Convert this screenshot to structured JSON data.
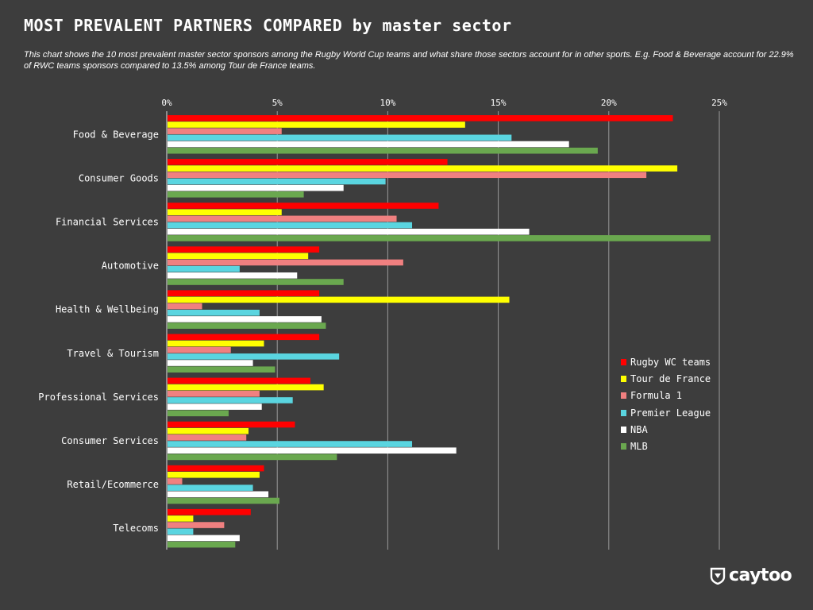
{
  "header": {
    "title": "MOST PREVALENT PARTNERS COMPARED by master sector",
    "subtitle": "This chart shows the 10 most prevalent master sector sponsors among the Rugby World Cup teams and what share those sectors account for in other sports. E.g. Food & Beverage account for 22.9% of RWC teams sponsors compared to 13.5% among Tour de France teams."
  },
  "logo": {
    "text": "caytoo",
    "icon": "caytoo-shield-icon"
  },
  "chart_data": {
    "type": "bar",
    "orientation": "horizontal",
    "categories": [
      "Food & Beverage",
      "Consumer Goods",
      "Financial Services",
      "Automotive",
      "Health & Wellbeing",
      "Travel & Tourism",
      "Professional Services",
      "Consumer Services",
      "Retail/Ecommerce",
      "Telecoms"
    ],
    "xlim": [
      0,
      25
    ],
    "ticks": [
      0,
      5,
      10,
      15,
      20,
      25
    ],
    "tick_labels": [
      "0%",
      "5%",
      "10%",
      "15%",
      "20%",
      "25%"
    ],
    "axis_position": "top",
    "grid": true,
    "legend_position": "right",
    "series": [
      {
        "name": "Rugby WC teams",
        "color": "#ff0000",
        "values": [
          22.9,
          12.7,
          12.3,
          6.9,
          6.9,
          6.9,
          6.5,
          5.8,
          4.4,
          3.8
        ]
      },
      {
        "name": "Tour de France",
        "color": "#ffff00",
        "values": [
          13.5,
          23.1,
          5.2,
          6.4,
          15.5,
          4.4,
          7.1,
          3.7,
          4.2,
          1.2
        ]
      },
      {
        "name": "Formula 1",
        "color": "#f08080",
        "values": [
          5.2,
          21.7,
          10.4,
          10.7,
          1.6,
          2.9,
          4.2,
          3.6,
          0.7,
          2.6
        ]
      },
      {
        "name": "Premier League",
        "color": "#5ad5e0",
        "values": [
          15.6,
          9.9,
          11.1,
          3.3,
          4.2,
          7.8,
          5.7,
          11.1,
          3.9,
          1.2
        ]
      },
      {
        "name": "NBA",
        "color": "#ffffff",
        "values": [
          18.2,
          8.0,
          16.4,
          5.9,
          7.0,
          3.9,
          4.3,
          13.1,
          4.6,
          3.3
        ]
      },
      {
        "name": "MLB",
        "color": "#6aa84f",
        "values": [
          19.5,
          6.2,
          24.6,
          8.0,
          7.2,
          4.9,
          2.8,
          7.7,
          5.1,
          3.1
        ]
      }
    ]
  }
}
